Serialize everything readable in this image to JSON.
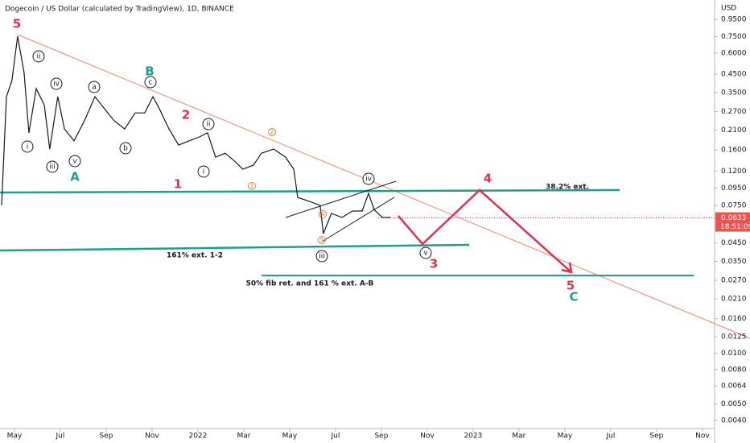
{
  "chart_data": {
    "type": "line",
    "log_scale": true,
    "title": "Dogecoin / US Dollar (calculated by TradingView), 1D, BINANCE",
    "y_label": "USD",
    "color": "#131722",
    "x": [
      -0.56,
      -0.35,
      -0.11,
      0.14,
      0.42,
      0.63,
      0.95,
      1.3,
      1.54,
      1.89,
      2.18,
      2.6,
      3.05,
      3.51,
      3.93,
      4.35,
      4.81,
      5.26,
      5.68,
      6.04,
      6.32,
      6.74,
      7.16,
      7.61,
      8.07,
      8.42,
      8.77,
      9.19,
      9.61,
      9.96,
      10.42,
      10.77,
      11.3,
      11.82,
      12.18,
      12.35,
      12.88,
      13.33,
      13.47,
      13.82,
      14.28,
      14.74,
      15.16,
      15.44,
      15.68,
      16.04,
      16.39
    ],
    "values": [
      0.0751,
      0.331,
      0.412,
      0.754,
      0.46,
      0.202,
      0.369,
      0.296,
      0.162,
      0.331,
      0.213,
      0.181,
      0.238,
      0.331,
      0.28,
      0.238,
      0.213,
      0.265,
      0.265,
      0.331,
      0.28,
      0.213,
      0.171,
      0.181,
      0.191,
      0.202,
      0.145,
      0.153,
      0.137,
      0.123,
      0.13,
      0.153,
      0.162,
      0.145,
      0.123,
      0.0837,
      0.0792,
      0.0751,
      0.0511,
      0.0673,
      0.0637,
      0.0695,
      0.0695,
      0.0885,
      0.0711,
      0.0637,
      0.0637
    ],
    "xlim": [
      -0.63,
      30.53
    ],
    "xticks": [
      {
        "value": 0,
        "label": "May"
      },
      {
        "value": 2,
        "label": "Jul"
      },
      {
        "value": 4,
        "label": "Sep"
      },
      {
        "value": 6,
        "label": "Nov"
      },
      {
        "value": 8,
        "label": "2022"
      },
      {
        "value": 10,
        "label": "Mar"
      },
      {
        "value": 12,
        "label": "May"
      },
      {
        "value": 14,
        "label": "Jul"
      },
      {
        "value": 16,
        "label": "Sep"
      },
      {
        "value": 18,
        "label": "Nov"
      },
      {
        "value": 20,
        "label": "2023"
      },
      {
        "value": 22,
        "label": "Mar"
      },
      {
        "value": 24,
        "label": "May"
      },
      {
        "value": 26,
        "label": "Jul"
      },
      {
        "value": 28,
        "label": "Sep"
      },
      {
        "value": 30,
        "label": "Nov"
      }
    ],
    "ylim": [
      0.00358,
      1.237
    ],
    "yticks": [
      {
        "value": 0.95,
        "label": "0.9500"
      },
      {
        "value": 0.75,
        "label": "0.7500"
      },
      {
        "value": 0.6,
        "label": "0.6000"
      },
      {
        "value": 0.45,
        "label": "0.4500"
      },
      {
        "value": 0.35,
        "label": "0.3500"
      },
      {
        "value": 0.27,
        "label": "0.2700"
      },
      {
        "value": 0.21,
        "label": "0.2100"
      },
      {
        "value": 0.16,
        "label": "0.1600"
      },
      {
        "value": 0.12,
        "label": "0.1200"
      },
      {
        "value": 0.095,
        "label": "0.0950"
      },
      {
        "value": 0.075,
        "label": "0.0750"
      },
      {
        "value": 0.045,
        "label": "0.0450"
      },
      {
        "value": 0.035,
        "label": "0.0350"
      },
      {
        "value": 0.027,
        "label": "0.0270"
      },
      {
        "value": 0.021,
        "label": "0.0210"
      },
      {
        "value": 0.016,
        "label": "0.0160"
      },
      {
        "value": 0.0125,
        "label": "0.0125"
      },
      {
        "value": 0.01,
        "label": "0.0100"
      },
      {
        "value": 0.008,
        "label": "0.0080"
      },
      {
        "value": 0.0064,
        "label": "0.0064"
      },
      {
        "value": 0.005,
        "label": "0.0050"
      },
      {
        "value": 0.004,
        "label": "0.0040"
      }
    ],
    "last_price": 0.0633,
    "countdown": "18:51:09",
    "annotations": [
      "5",
      "ii",
      "iv",
      "a",
      "c",
      "B",
      "i",
      "iii",
      "v",
      "A",
      "b",
      "2",
      "ii",
      "i",
      "1",
      "2",
      "1",
      "iv",
      "38.2% ext.",
      "4",
      "161% ext. 1-2",
      "iii",
      "v",
      "3",
      "50% fib ret.  and 161 % ext. A-B",
      "5",
      "C",
      "4",
      "5"
    ]
  }
}
